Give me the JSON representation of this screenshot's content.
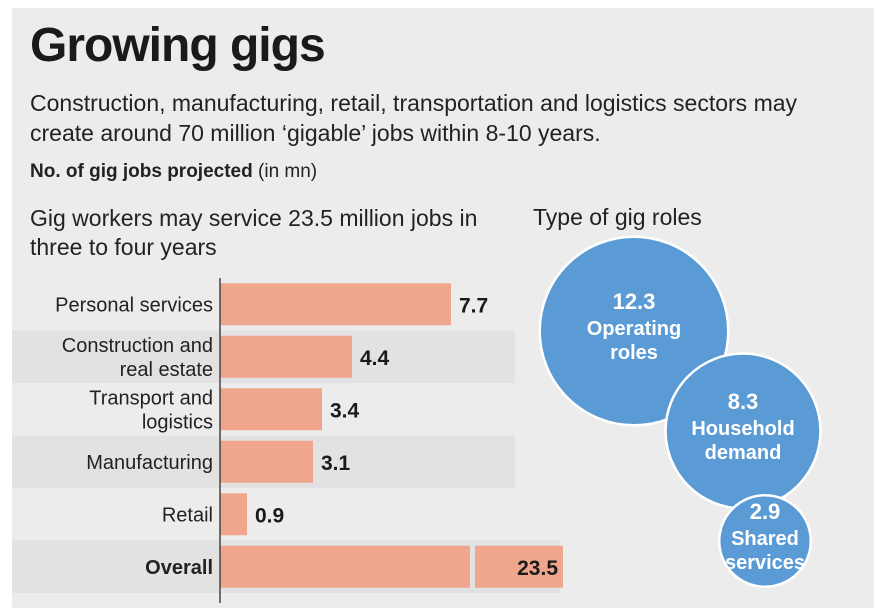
{
  "header": {
    "title": "Growing gigs",
    "subtitle": "Construction, manufacturing, retail, transportation and logistics sectors may create around 70 million ‘gigable’ jobs within 8-10 years.",
    "unit_bold": "No. of gig jobs projected",
    "unit_paren": "(in mn)"
  },
  "colors": {
    "bar": "#f0a58d",
    "bubble": "#5b9bd5",
    "band": "#e2e2e2"
  },
  "chart_data": [
    {
      "type": "bar",
      "orientation": "horizontal",
      "title": "Gig workers may service 23.5 million jobs in three to four years",
      "categories": [
        [
          "Personal services"
        ],
        [
          "Construction and",
          "real estate"
        ],
        [
          "Transport and",
          "logistics"
        ],
        [
          "Manufacturing"
        ],
        [
          "Retail"
        ],
        [
          "Overall"
        ]
      ],
      "values": [
        7.7,
        4.4,
        3.4,
        3.1,
        0.9,
        23.5
      ],
      "value_labels": [
        "7.7",
        "4.4",
        "3.4",
        "3.1",
        "0.9",
        "23.5"
      ],
      "highlight_last": true,
      "xlim": [
        0,
        8.5
      ]
    },
    {
      "type": "bubble",
      "title": "Type of gig roles",
      "items": [
        {
          "value": 12.3,
          "value_label": "12.3",
          "label": [
            "Operating",
            "roles"
          ]
        },
        {
          "value": 8.3,
          "value_label": "8.3",
          "label": [
            "Household",
            "demand"
          ]
        },
        {
          "value": 2.9,
          "value_label": "2.9",
          "label": [
            "Shared",
            "services"
          ]
        }
      ]
    }
  ]
}
